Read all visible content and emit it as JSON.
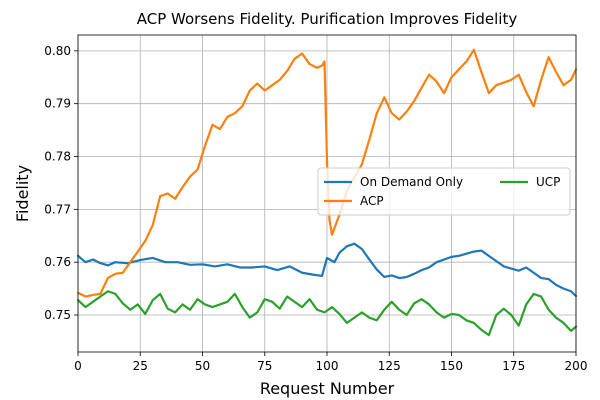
{
  "chart_data": {
    "type": "line",
    "title": "ACP Worsens Fidelity. Purification Improves Fidelity",
    "xlabel": "Request Number",
    "ylabel": "Fidelity",
    "xlim": [
      0,
      200
    ],
    "ylim": [
      0.743,
      0.803
    ],
    "xticks": [
      0,
      25,
      50,
      75,
      100,
      125,
      150,
      175,
      200
    ],
    "yticks": [
      0.75,
      0.76,
      0.77,
      0.78,
      0.79,
      0.8
    ],
    "ytick_labels": [
      "0.75",
      "0.76",
      "0.77",
      "0.78",
      "0.79",
      "0.80"
    ],
    "grid": true,
    "legend": {
      "placement": "center-right",
      "columns": 2
    },
    "series": [
      {
        "name": "On Demand Only",
        "color": "#1f77b4",
        "points": [
          [
            0,
            0.7612
          ],
          [
            3,
            0.76
          ],
          [
            6,
            0.7605
          ],
          [
            9,
            0.7598
          ],
          [
            12,
            0.7594
          ],
          [
            15,
            0.76
          ],
          [
            20,
            0.7598
          ],
          [
            25,
            0.7604
          ],
          [
            30,
            0.7608
          ],
          [
            35,
            0.76
          ],
          [
            40,
            0.76
          ],
          [
            45,
            0.7595
          ],
          [
            50,
            0.7596
          ],
          [
            55,
            0.7592
          ],
          [
            60,
            0.7596
          ],
          [
            65,
            0.759
          ],
          [
            70,
            0.759
          ],
          [
            75,
            0.7592
          ],
          [
            80,
            0.7585
          ],
          [
            85,
            0.7592
          ],
          [
            90,
            0.758
          ],
          [
            95,
            0.7576
          ],
          [
            98,
            0.7574
          ],
          [
            100,
            0.7608
          ],
          [
            103,
            0.76
          ],
          [
            105,
            0.7618
          ],
          [
            108,
            0.763
          ],
          [
            111,
            0.7635
          ],
          [
            114,
            0.7625
          ],
          [
            117,
            0.7605
          ],
          [
            120,
            0.7586
          ],
          [
            123,
            0.7572
          ],
          [
            126,
            0.7575
          ],
          [
            129,
            0.757
          ],
          [
            132,
            0.7572
          ],
          [
            135,
            0.7578
          ],
          [
            138,
            0.7585
          ],
          [
            141,
            0.759
          ],
          [
            144,
            0.76
          ],
          [
            147,
            0.7605
          ],
          [
            150,
            0.761
          ],
          [
            153,
            0.7612
          ],
          [
            156,
            0.7616
          ],
          [
            159,
            0.762
          ],
          [
            162,
            0.7622
          ],
          [
            165,
            0.7612
          ],
          [
            168,
            0.7602
          ],
          [
            171,
            0.7592
          ],
          [
            174,
            0.7588
          ],
          [
            177,
            0.7584
          ],
          [
            180,
            0.759
          ],
          [
            183,
            0.758
          ],
          [
            186,
            0.757
          ],
          [
            189,
            0.7568
          ],
          [
            192,
            0.7557
          ],
          [
            195,
            0.755
          ],
          [
            198,
            0.7545
          ],
          [
            200,
            0.7536
          ]
        ]
      },
      {
        "name": "ACP",
        "color": "#ff7f0e",
        "points": [
          [
            0,
            0.7542
          ],
          [
            3,
            0.7535
          ],
          [
            6,
            0.7538
          ],
          [
            9,
            0.754
          ],
          [
            12,
            0.757
          ],
          [
            15,
            0.7578
          ],
          [
            18,
            0.758
          ],
          [
            21,
            0.76
          ],
          [
            24,
            0.762
          ],
          [
            27,
            0.764
          ],
          [
            30,
            0.767
          ],
          [
            33,
            0.7725
          ],
          [
            36,
            0.773
          ],
          [
            39,
            0.772
          ],
          [
            42,
            0.7742
          ],
          [
            45,
            0.7762
          ],
          [
            48,
            0.7775
          ],
          [
            51,
            0.782
          ],
          [
            54,
            0.786
          ],
          [
            57,
            0.7852
          ],
          [
            60,
            0.7875
          ],
          [
            63,
            0.7882
          ],
          [
            66,
            0.7895
          ],
          [
            69,
            0.7925
          ],
          [
            72,
            0.7938
          ],
          [
            75,
            0.7925
          ],
          [
            78,
            0.7935
          ],
          [
            81,
            0.7945
          ],
          [
            84,
            0.7962
          ],
          [
            87,
            0.7985
          ],
          [
            90,
            0.7995
          ],
          [
            93,
            0.7975
          ],
          [
            96,
            0.7968
          ],
          [
            98,
            0.7972
          ],
          [
            99,
            0.798
          ],
          [
            100,
            0.7792
          ],
          [
            101,
            0.768
          ],
          [
            102,
            0.7652
          ],
          [
            105,
            0.769
          ],
          [
            108,
            0.7735
          ],
          [
            111,
            0.776
          ],
          [
            114,
            0.7785
          ],
          [
            117,
            0.7832
          ],
          [
            120,
            0.7882
          ],
          [
            123,
            0.7912
          ],
          [
            126,
            0.7882
          ],
          [
            129,
            0.787
          ],
          [
            132,
            0.7885
          ],
          [
            135,
            0.7905
          ],
          [
            138,
            0.793
          ],
          [
            141,
            0.7955
          ],
          [
            144,
            0.7942
          ],
          [
            147,
            0.792
          ],
          [
            150,
            0.795
          ],
          [
            153,
            0.7965
          ],
          [
            156,
            0.798
          ],
          [
            159,
            0.8002
          ],
          [
            162,
            0.796
          ],
          [
            165,
            0.792
          ],
          [
            168,
            0.7935
          ],
          [
            171,
            0.794
          ],
          [
            174,
            0.7945
          ],
          [
            177,
            0.7955
          ],
          [
            180,
            0.7922
          ],
          [
            183,
            0.7895
          ],
          [
            186,
            0.7945
          ],
          [
            189,
            0.7988
          ],
          [
            192,
            0.796
          ],
          [
            195,
            0.7935
          ],
          [
            198,
            0.7945
          ],
          [
            200,
            0.7965
          ]
        ]
      },
      {
        "name": "UCP",
        "color": "#2ca02c",
        "points": [
          [
            0,
            0.7528
          ],
          [
            3,
            0.7515
          ],
          [
            6,
            0.7525
          ],
          [
            9,
            0.7535
          ],
          [
            12,
            0.7545
          ],
          [
            15,
            0.754
          ],
          [
            18,
            0.7522
          ],
          [
            21,
            0.751
          ],
          [
            24,
            0.752
          ],
          [
            27,
            0.7502
          ],
          [
            30,
            0.7528
          ],
          [
            33,
            0.754
          ],
          [
            36,
            0.7512
          ],
          [
            39,
            0.7505
          ],
          [
            42,
            0.752
          ],
          [
            45,
            0.751
          ],
          [
            48,
            0.753
          ],
          [
            51,
            0.752
          ],
          [
            54,
            0.7515
          ],
          [
            57,
            0.752
          ],
          [
            60,
            0.7525
          ],
          [
            63,
            0.754
          ],
          [
            66,
            0.7515
          ],
          [
            69,
            0.7495
          ],
          [
            72,
            0.7505
          ],
          [
            75,
            0.753
          ],
          [
            78,
            0.7525
          ],
          [
            81,
            0.7512
          ],
          [
            84,
            0.7535
          ],
          [
            87,
            0.7525
          ],
          [
            90,
            0.7515
          ],
          [
            93,
            0.753
          ],
          [
            96,
            0.751
          ],
          [
            99,
            0.7505
          ],
          [
            102,
            0.7515
          ],
          [
            105,
            0.7502
          ],
          [
            108,
            0.7485
          ],
          [
            111,
            0.7495
          ],
          [
            114,
            0.7505
          ],
          [
            117,
            0.7495
          ],
          [
            120,
            0.749
          ],
          [
            123,
            0.751
          ],
          [
            126,
            0.7525
          ],
          [
            129,
            0.751
          ],
          [
            132,
            0.75
          ],
          [
            135,
            0.7522
          ],
          [
            138,
            0.753
          ],
          [
            141,
            0.752
          ],
          [
            144,
            0.7505
          ],
          [
            147,
            0.7495
          ],
          [
            150,
            0.7502
          ],
          [
            153,
            0.75
          ],
          [
            156,
            0.749
          ],
          [
            159,
            0.7485
          ],
          [
            162,
            0.7472
          ],
          [
            165,
            0.7462
          ],
          [
            168,
            0.75
          ],
          [
            171,
            0.7512
          ],
          [
            174,
            0.75
          ],
          [
            177,
            0.748
          ],
          [
            180,
            0.752
          ],
          [
            183,
            0.754
          ],
          [
            186,
            0.7535
          ],
          [
            189,
            0.751
          ],
          [
            192,
            0.7495
          ],
          [
            195,
            0.7485
          ],
          [
            198,
            0.747
          ],
          [
            200,
            0.7478
          ]
        ]
      }
    ]
  }
}
